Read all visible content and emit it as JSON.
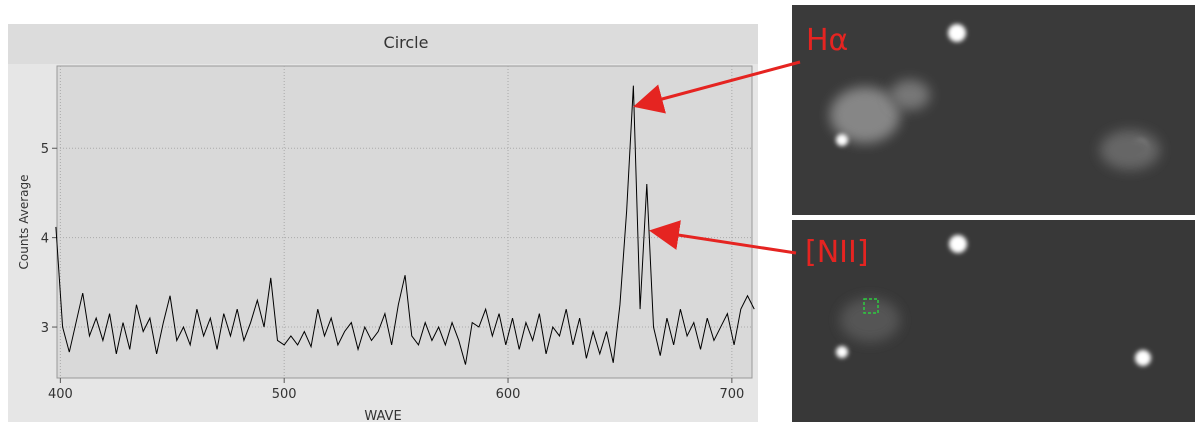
{
  "chart_data": {
    "type": "line",
    "title": "Circle",
    "xlabel": "WAVE",
    "ylabel": "Counts Average",
    "x": [
      398,
      401,
      404,
      407,
      410,
      413,
      416,
      419,
      422,
      425,
      428,
      431,
      434,
      437,
      440,
      443,
      446,
      449,
      452,
      455,
      458,
      461,
      464,
      467,
      470,
      473,
      476,
      479,
      482,
      485,
      488,
      491,
      494,
      497,
      500,
      503,
      506,
      509,
      512,
      515,
      518,
      521,
      524,
      527,
      530,
      533,
      536,
      539,
      542,
      545,
      548,
      551,
      554,
      557,
      560,
      563,
      566,
      569,
      572,
      575,
      578,
      581,
      584,
      587,
      590,
      593,
      596,
      599,
      602,
      605,
      608,
      611,
      614,
      617,
      620,
      623,
      626,
      629,
      632,
      635,
      638,
      641,
      644,
      647,
      650,
      653,
      656,
      659,
      662,
      665,
      668,
      671,
      674,
      677,
      680,
      683,
      686,
      689,
      692,
      695,
      698,
      701,
      704,
      707,
      710
    ],
    "series": [
      {
        "name": "Circle",
        "color": "#000000",
        "values": [
          4.12,
          3.0,
          2.72,
          3.05,
          3.38,
          2.9,
          3.1,
          2.85,
          3.15,
          2.7,
          3.05,
          2.75,
          3.25,
          2.95,
          3.1,
          2.7,
          3.05,
          3.35,
          2.85,
          3.0,
          2.8,
          3.2,
          2.9,
          3.1,
          2.75,
          3.15,
          2.9,
          3.2,
          2.85,
          3.05,
          3.3,
          3.0,
          3.55,
          2.85,
          2.8,
          2.9,
          2.8,
          2.95,
          2.78,
          3.2,
          2.9,
          3.1,
          2.8,
          2.95,
          3.05,
          2.75,
          3.0,
          2.85,
          2.95,
          3.15,
          2.8,
          3.25,
          3.58,
          2.9,
          2.8,
          3.05,
          2.85,
          3.0,
          2.8,
          3.05,
          2.85,
          2.58,
          3.05,
          3.0,
          3.2,
          2.9,
          3.15,
          2.8,
          3.1,
          2.75,
          3.05,
          2.85,
          3.15,
          2.7,
          3.0,
          2.9,
          3.2,
          2.8,
          3.1,
          2.65,
          2.95,
          2.7,
          2.95,
          2.6,
          3.25,
          4.3,
          5.7,
          3.2,
          4.6,
          3.0,
          2.68,
          3.1,
          2.8,
          3.2,
          2.9,
          3.05,
          2.75,
          3.1,
          2.85,
          3.0,
          3.15,
          2.8,
          3.2,
          3.35,
          3.2
        ]
      }
    ],
    "xlim": [
      398.5,
      709
    ],
    "ylim": [
      2.43,
      5.92
    ],
    "xticks": [
      400,
      500,
      600,
      700
    ],
    "yticks": [
      3,
      4,
      5
    ],
    "grid": true,
    "annotations": [
      "Hα",
      "[NII]"
    ]
  }
}
